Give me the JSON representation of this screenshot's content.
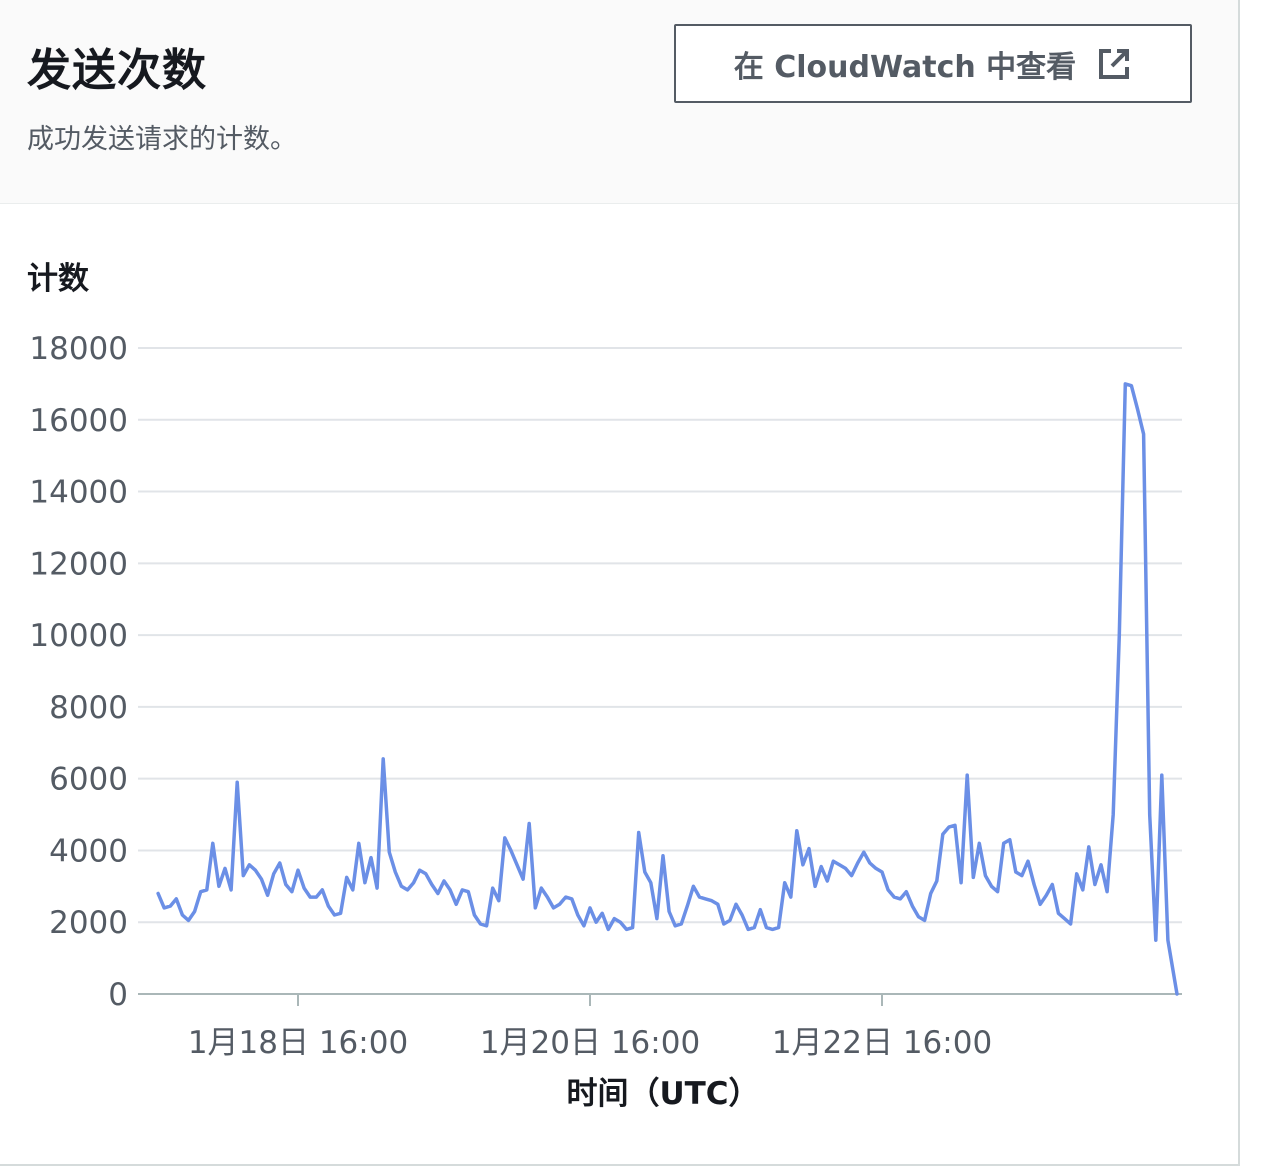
{
  "panel": {
    "title": "发送次数",
    "description": "成功发送请求的计数。",
    "button_label": "在 CloudWatch 中查看",
    "button_icon": "external-link-icon"
  },
  "chart_data": {
    "type": "line",
    "title": "",
    "ylabel": "计数",
    "xlabel": "时间（UTC）",
    "ylim": [
      0,
      18000
    ],
    "y_ticks": [
      0,
      2000,
      4000,
      6000,
      8000,
      10000,
      12000,
      14000,
      16000,
      18000
    ],
    "x_ticks": [
      "1月18日 16:00",
      "1月20日 16:00",
      "1月22日 16:00"
    ],
    "x_tick_positions_hours": [
      0,
      48,
      96
    ],
    "grid": true,
    "line_color": "#6b8fe6",
    "series": [
      {
        "name": "",
        "points": [
          [
            -23.0,
            2800
          ],
          [
            -22.0,
            2400
          ],
          [
            -21.0,
            2450
          ],
          [
            -20.0,
            2650
          ],
          [
            -19.0,
            2200
          ],
          [
            -18.0,
            2050
          ],
          [
            -17.0,
            2300
          ],
          [
            -16.0,
            2850
          ],
          [
            -15.0,
            2900
          ],
          [
            -14.0,
            4200
          ],
          [
            -13.0,
            3000
          ],
          [
            -12.0,
            3500
          ],
          [
            -11.0,
            2900
          ],
          [
            -10.0,
            5900
          ],
          [
            -9.0,
            3300
          ],
          [
            -8.0,
            3600
          ],
          [
            -7.0,
            3450
          ],
          [
            -6.0,
            3200
          ],
          [
            -5.0,
            2750
          ],
          [
            -4.0,
            3350
          ],
          [
            -3.0,
            3650
          ],
          [
            -2.0,
            3050
          ],
          [
            -1.0,
            2850
          ],
          [
            0.0,
            3450
          ],
          [
            1.0,
            2950
          ],
          [
            2.0,
            2700
          ],
          [
            3.0,
            2700
          ],
          [
            4.0,
            2900
          ],
          [
            5.0,
            2450
          ],
          [
            6.0,
            2200
          ],
          [
            7.0,
            2250
          ],
          [
            8.0,
            3250
          ],
          [
            9.0,
            2900
          ],
          [
            10.0,
            4200
          ],
          [
            11.0,
            3100
          ],
          [
            12.0,
            3800
          ],
          [
            13.0,
            2950
          ],
          [
            14.0,
            6550
          ],
          [
            15.0,
            3950
          ],
          [
            16.0,
            3400
          ],
          [
            17.0,
            3000
          ],
          [
            18.0,
            2900
          ],
          [
            19.0,
            3100
          ],
          [
            20.0,
            3450
          ],
          [
            21.0,
            3350
          ],
          [
            22.0,
            3050
          ],
          [
            23.0,
            2800
          ],
          [
            24.0,
            3150
          ],
          [
            25.0,
            2900
          ],
          [
            26.0,
            2500
          ],
          [
            27.0,
            2900
          ],
          [
            28.0,
            2850
          ],
          [
            29.0,
            2200
          ],
          [
            30.0,
            1950
          ],
          [
            31.0,
            1900
          ],
          [
            32.0,
            2950
          ],
          [
            33.0,
            2600
          ],
          [
            34.0,
            4350
          ],
          [
            35.0,
            4000
          ],
          [
            36.0,
            3600
          ],
          [
            37.0,
            3200
          ],
          [
            38.0,
            4750
          ],
          [
            39.0,
            2400
          ],
          [
            40.0,
            2950
          ],
          [
            41.0,
            2700
          ],
          [
            42.0,
            2400
          ],
          [
            43.0,
            2500
          ],
          [
            44.0,
            2700
          ],
          [
            45.0,
            2650
          ],
          [
            46.0,
            2200
          ],
          [
            47.0,
            1900
          ],
          [
            48.0,
            2400
          ],
          [
            49.0,
            2000
          ],
          [
            50.0,
            2250
          ],
          [
            51.0,
            1800
          ],
          [
            52.0,
            2100
          ],
          [
            53.0,
            2000
          ],
          [
            54.0,
            1800
          ],
          [
            55.0,
            1850
          ],
          [
            56.0,
            4500
          ],
          [
            57.0,
            3400
          ],
          [
            58.0,
            3100
          ],
          [
            59.0,
            2100
          ],
          [
            60.0,
            3850
          ],
          [
            61.0,
            2300
          ],
          [
            62.0,
            1900
          ],
          [
            63.0,
            1950
          ],
          [
            64.0,
            2450
          ],
          [
            65.0,
            3000
          ],
          [
            66.0,
            2700
          ],
          [
            67.0,
            2650
          ],
          [
            68.0,
            2600
          ],
          [
            69.0,
            2500
          ],
          [
            70.0,
            1950
          ],
          [
            71.0,
            2050
          ],
          [
            72.0,
            2500
          ],
          [
            73.0,
            2200
          ],
          [
            74.0,
            1800
          ],
          [
            75.0,
            1850
          ],
          [
            76.0,
            2350
          ],
          [
            77.0,
            1850
          ],
          [
            78.0,
            1800
          ],
          [
            79.0,
            1850
          ],
          [
            80.0,
            3100
          ],
          [
            81.0,
            2700
          ],
          [
            82.0,
            4550
          ],
          [
            83.0,
            3600
          ],
          [
            84.0,
            4050
          ],
          [
            85.0,
            3000
          ],
          [
            86.0,
            3550
          ],
          [
            87.0,
            3150
          ],
          [
            88.0,
            3700
          ],
          [
            89.0,
            3600
          ],
          [
            90.0,
            3500
          ],
          [
            91.0,
            3300
          ],
          [
            92.0,
            3650
          ],
          [
            93.0,
            3950
          ],
          [
            94.0,
            3650
          ],
          [
            95.0,
            3500
          ],
          [
            96.0,
            3400
          ],
          [
            97.0,
            2900
          ],
          [
            98.0,
            2700
          ],
          [
            99.0,
            2650
          ],
          [
            100.0,
            2850
          ],
          [
            101.0,
            2450
          ],
          [
            102.0,
            2150
          ],
          [
            103.0,
            2050
          ],
          [
            104.0,
            2800
          ],
          [
            105.0,
            3150
          ],
          [
            106.0,
            4450
          ],
          [
            107.0,
            4650
          ],
          [
            108.0,
            4700
          ],
          [
            109.0,
            3100
          ],
          [
            110.0,
            6100
          ],
          [
            111.0,
            3250
          ],
          [
            112.0,
            4200
          ],
          [
            113.0,
            3300
          ],
          [
            114.0,
            3000
          ],
          [
            115.0,
            2850
          ],
          [
            116.0,
            4200
          ],
          [
            117.0,
            4300
          ],
          [
            118.0,
            3400
          ],
          [
            119.0,
            3300
          ],
          [
            120.0,
            3700
          ],
          [
            121.0,
            3050
          ],
          [
            122.0,
            2500
          ],
          [
            123.0,
            2750
          ],
          [
            124.0,
            3050
          ],
          [
            125.0,
            2250
          ],
          [
            126.0,
            2100
          ],
          [
            127.0,
            1950
          ],
          [
            128.0,
            3350
          ],
          [
            129.0,
            2900
          ],
          [
            130.0,
            4100
          ],
          [
            131.0,
            3050
          ],
          [
            132.0,
            3600
          ],
          [
            133.0,
            2850
          ],
          [
            134.0,
            5000
          ],
          [
            135.0,
            10000
          ],
          [
            136.0,
            17000
          ],
          [
            137.0,
            16950
          ],
          [
            138.0,
            16300
          ],
          [
            139.0,
            15600
          ],
          [
            140.0,
            5000
          ],
          [
            141.0,
            1500
          ],
          [
            142.0,
            6100
          ],
          [
            143.0,
            1500
          ],
          [
            144.5,
            0
          ]
        ]
      }
    ]
  }
}
